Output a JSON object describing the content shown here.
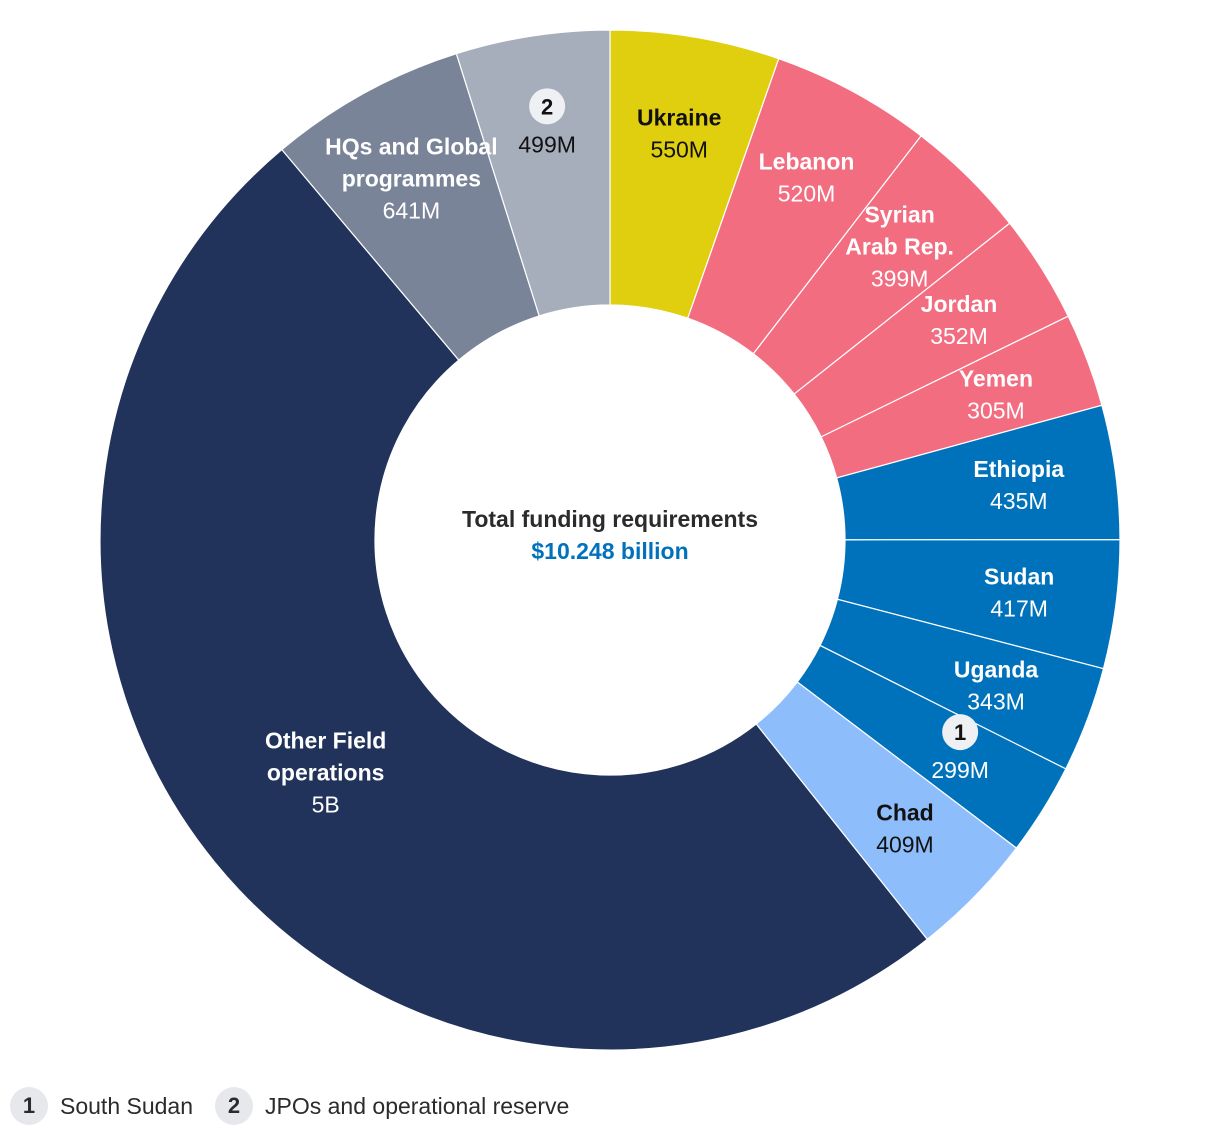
{
  "chart_data": {
    "type": "pie",
    "variant": "donut",
    "center_title": "Total funding requirements",
    "center_value": "$10.248 billion",
    "center_value_color": "#0072bc",
    "unit": "USD",
    "slices": [
      {
        "label": "Ukraine",
        "value_label": "550M",
        "value": 550,
        "color": "#e0cf0e",
        "text_color": "#111111",
        "name_bold": true
      },
      {
        "label": "Lebanon",
        "value_label": "520M",
        "value": 520,
        "color": "#f26d80",
        "text_color": "#ffffff",
        "name_bold": true
      },
      {
        "label": "Syrian Arab Rep.",
        "value_label": "399M",
        "value": 399,
        "color": "#f26d80",
        "text_color": "#ffffff",
        "name_bold": true
      },
      {
        "label": "Jordan",
        "value_label": "352M",
        "value": 352,
        "color": "#f26d80",
        "text_color": "#ffffff",
        "name_bold": true
      },
      {
        "label": "Yemen",
        "value_label": "305M",
        "value": 305,
        "color": "#f26d80",
        "text_color": "#ffffff",
        "name_bold": true
      },
      {
        "label": "Ethiopia",
        "value_label": "435M",
        "value": 435,
        "color": "#0072bc",
        "text_color": "#ffffff",
        "name_bold": true
      },
      {
        "label": "Sudan",
        "value_label": "417M",
        "value": 417,
        "color": "#0072bc",
        "text_color": "#ffffff",
        "name_bold": true
      },
      {
        "label": "Uganda",
        "value_label": "343M",
        "value": 343,
        "color": "#0072bc",
        "text_color": "#ffffff",
        "name_bold": true
      },
      {
        "label": "1",
        "value_label": "299M",
        "value": 299,
        "color": "#0072bc",
        "text_color": "#ffffff",
        "badge": true
      },
      {
        "label": "Chad",
        "value_label": "409M",
        "value": 409,
        "color": "#8ebdfb",
        "text_color": "#111111",
        "name_bold": true
      },
      {
        "label": "Other Field operations",
        "value_label": "5B",
        "value": 5079,
        "color": "#21335a",
        "text_color": "#ffffff",
        "name_bold": true
      },
      {
        "label": "HQs and Global programmes",
        "value_label": "641M",
        "value": 641,
        "color": "#7a8499",
        "text_color": "#ffffff",
        "name_bold": true
      },
      {
        "label": "2",
        "value_label": "499M",
        "value": 499,
        "color": "#a6adbb",
        "text_color": "#111111",
        "badge": true
      }
    ]
  },
  "legend": [
    {
      "badge": "1",
      "label": "South Sudan"
    },
    {
      "badge": "2",
      "label": "JPOs and operational reserve"
    }
  ]
}
